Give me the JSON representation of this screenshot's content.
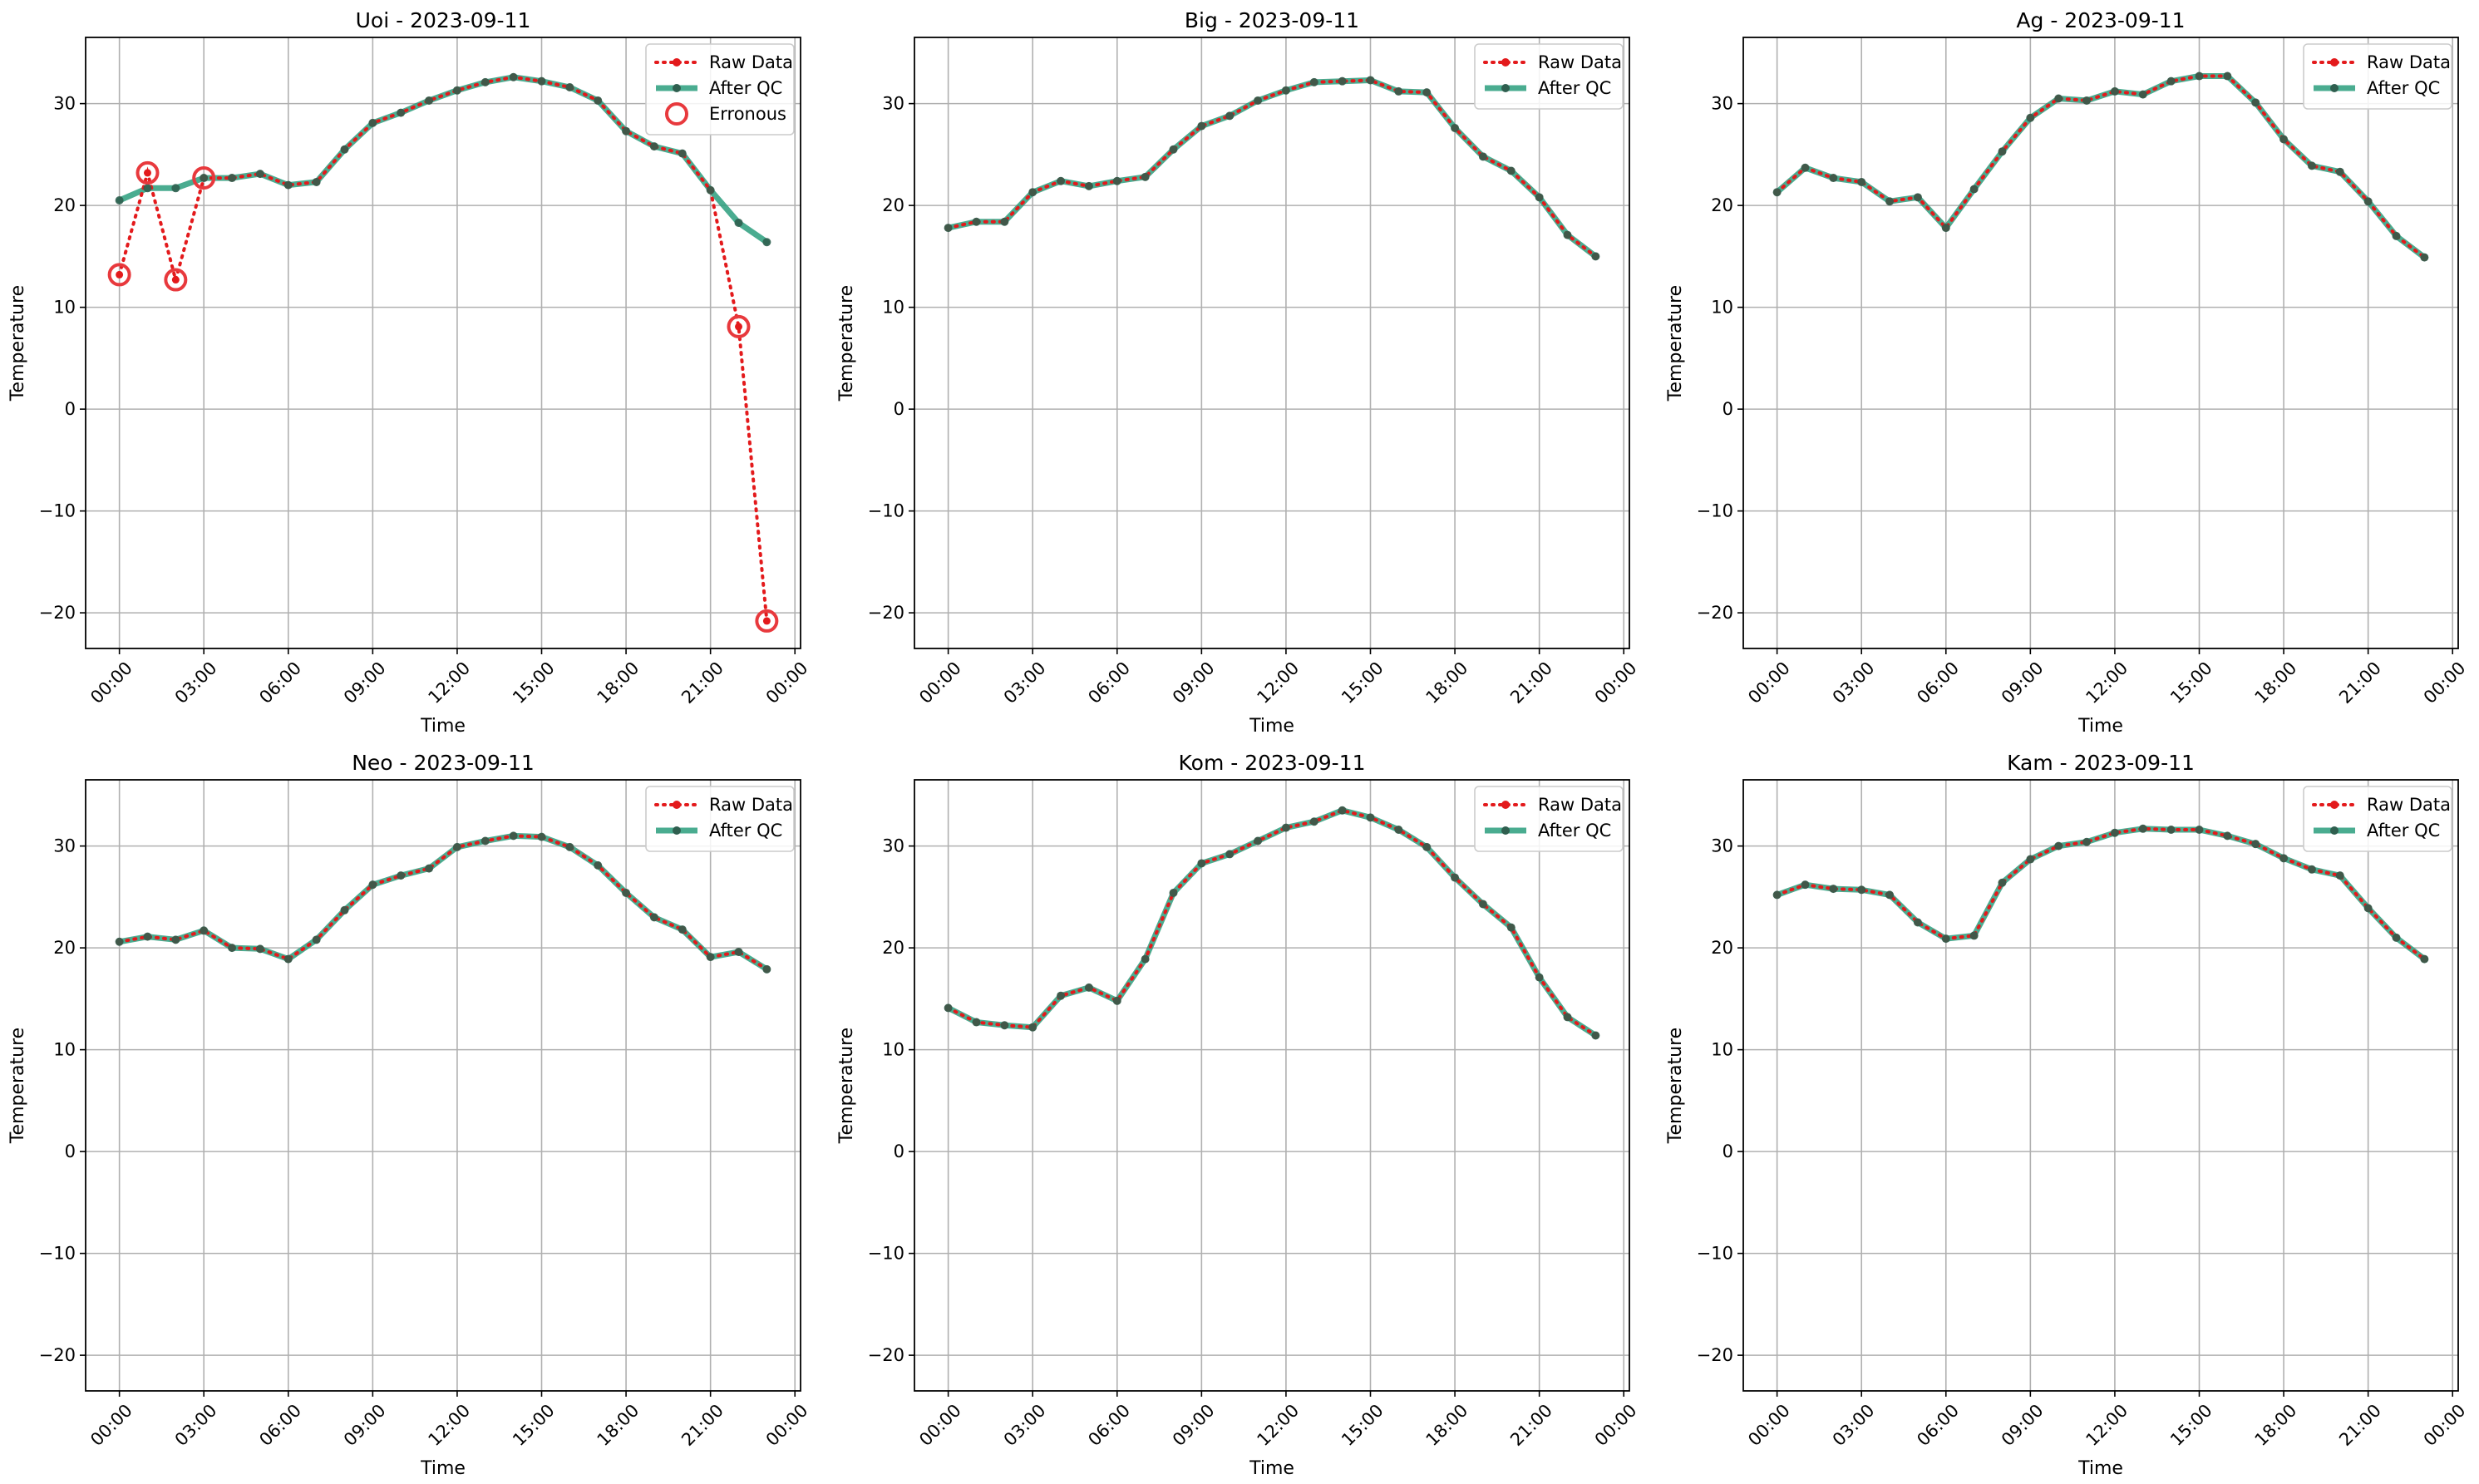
{
  "colors": {
    "raw": "#e31a1c",
    "qc": "#2a9d7c",
    "qc_marker": "#2f5f4f",
    "erroneous": "#e8393d",
    "grid": "#b0b0b0"
  },
  "chart_data": [
    {
      "type": "line",
      "title": "Uoi - 2023-09-11",
      "xlabel": "Time",
      "ylabel": "Temperature",
      "x_ticks": [
        "00:00",
        "03:00",
        "06:00",
        "09:00",
        "12:00",
        "15:00",
        "18:00",
        "21:00",
        "00:00"
      ],
      "y_ticks": [
        "−20",
        "−10",
        "0",
        "10",
        "20",
        "30"
      ],
      "xlim_hours": [
        -1.2,
        24.2
      ],
      "ylim": [
        -23.5,
        36.5
      ],
      "grid": true,
      "legend_position": "top-right",
      "legend": [
        "Raw Data",
        "After QC",
        "Erronous"
      ],
      "raw": [
        13.2,
        23.2,
        12.7,
        22.7,
        22.7,
        23.1,
        22.0,
        22.3,
        25.5,
        28.1,
        29.1,
        30.3,
        31.3,
        32.1,
        32.6,
        32.2,
        31.6,
        30.3,
        27.3,
        25.8,
        25.1,
        21.5,
        8.1,
        -20.8
      ],
      "qc": [
        20.5,
        21.7,
        21.7,
        22.7,
        22.7,
        23.1,
        22.0,
        22.3,
        25.5,
        28.1,
        29.1,
        30.3,
        31.3,
        32.1,
        32.6,
        32.2,
        31.6,
        30.3,
        27.3,
        25.8,
        25.1,
        21.5,
        18.3,
        16.4
      ],
      "erroneous_hours": [
        0,
        1,
        2,
        3,
        22,
        23
      ]
    },
    {
      "type": "line",
      "title": "Big - 2023-09-11",
      "xlabel": "Time",
      "ylabel": "Temperature",
      "x_ticks": [
        "00:00",
        "03:00",
        "06:00",
        "09:00",
        "12:00",
        "15:00",
        "18:00",
        "21:00",
        "00:00"
      ],
      "y_ticks": [
        "−20",
        "−10",
        "0",
        "10",
        "20",
        "30"
      ],
      "xlim_hours": [
        -1.2,
        24.2
      ],
      "ylim": [
        -23.5,
        36.5
      ],
      "grid": true,
      "legend_position": "top-right",
      "legend": [
        "Raw Data",
        "After QC"
      ],
      "raw": [
        17.8,
        18.4,
        18.4,
        21.3,
        22.4,
        21.9,
        22.4,
        22.8,
        25.5,
        27.8,
        28.8,
        30.3,
        31.3,
        32.1,
        32.2,
        32.3,
        31.2,
        31.1,
        27.6,
        24.8,
        23.4,
        20.8,
        17.1,
        15.0
      ],
      "qc": [
        17.8,
        18.4,
        18.4,
        21.3,
        22.4,
        21.9,
        22.4,
        22.8,
        25.5,
        27.8,
        28.8,
        30.3,
        31.3,
        32.1,
        32.2,
        32.3,
        31.2,
        31.1,
        27.6,
        24.8,
        23.4,
        20.8,
        17.1,
        15.0
      ],
      "erroneous_hours": []
    },
    {
      "type": "line",
      "title": "Ag - 2023-09-11",
      "xlabel": "Time",
      "ylabel": "Temperature",
      "x_ticks": [
        "00:00",
        "03:00",
        "06:00",
        "09:00",
        "12:00",
        "15:00",
        "18:00",
        "21:00",
        "00:00"
      ],
      "y_ticks": [
        "−20",
        "−10",
        "0",
        "10",
        "20",
        "30"
      ],
      "xlim_hours": [
        -1.2,
        24.2
      ],
      "ylim": [
        -23.5,
        36.5
      ],
      "grid": true,
      "legend_position": "top-right",
      "legend": [
        "Raw Data",
        "After QC"
      ],
      "raw": [
        21.3,
        23.7,
        22.7,
        22.3,
        20.4,
        20.8,
        17.8,
        21.6,
        25.3,
        28.6,
        30.5,
        30.3,
        31.2,
        30.9,
        32.2,
        32.7,
        32.7,
        30.1,
        26.5,
        23.9,
        23.3,
        20.4,
        17.0,
        14.9
      ],
      "qc": [
        21.3,
        23.7,
        22.7,
        22.3,
        20.4,
        20.8,
        17.8,
        21.6,
        25.3,
        28.6,
        30.5,
        30.3,
        31.2,
        30.9,
        32.2,
        32.7,
        32.7,
        30.1,
        26.5,
        23.9,
        23.3,
        20.4,
        17.0,
        14.9
      ],
      "erroneous_hours": []
    },
    {
      "type": "line",
      "title": "Neo - 2023-09-11",
      "xlabel": "Time",
      "ylabel": "Temperature",
      "x_ticks": [
        "00:00",
        "03:00",
        "06:00",
        "09:00",
        "12:00",
        "15:00",
        "18:00",
        "21:00",
        "00:00"
      ],
      "y_ticks": [
        "−20",
        "−10",
        "0",
        "10",
        "20",
        "30"
      ],
      "xlim_hours": [
        -1.2,
        24.2
      ],
      "ylim": [
        -23.5,
        36.5
      ],
      "grid": true,
      "legend_position": "top-right",
      "legend": [
        "Raw Data",
        "After QC"
      ],
      "raw": [
        20.6,
        21.1,
        20.8,
        21.7,
        20.0,
        19.9,
        18.9,
        20.8,
        23.7,
        26.2,
        27.1,
        27.8,
        29.9,
        30.5,
        31.0,
        30.9,
        29.9,
        28.1,
        25.4,
        23.0,
        21.8,
        19.1,
        19.6,
        17.9
      ],
      "qc": [
        20.6,
        21.1,
        20.8,
        21.7,
        20.0,
        19.9,
        18.9,
        20.8,
        23.7,
        26.2,
        27.1,
        27.8,
        29.9,
        30.5,
        31.0,
        30.9,
        29.9,
        28.1,
        25.4,
        23.0,
        21.8,
        19.1,
        19.6,
        17.9
      ],
      "erroneous_hours": []
    },
    {
      "type": "line",
      "title": "Kom - 2023-09-11",
      "xlabel": "Time",
      "ylabel": "Temperature",
      "x_ticks": [
        "00:00",
        "03:00",
        "06:00",
        "09:00",
        "12:00",
        "15:00",
        "18:00",
        "21:00",
        "00:00"
      ],
      "y_ticks": [
        "−20",
        "−10",
        "0",
        "10",
        "20",
        "30"
      ],
      "xlim_hours": [
        -1.2,
        24.2
      ],
      "ylim": [
        -23.5,
        36.5
      ],
      "grid": true,
      "legend_position": "top-right",
      "legend": [
        "Raw Data",
        "After QC"
      ],
      "raw": [
        14.1,
        12.7,
        12.4,
        12.2,
        15.3,
        16.1,
        14.8,
        18.9,
        25.4,
        28.3,
        29.2,
        30.5,
        31.8,
        32.4,
        33.5,
        32.8,
        31.6,
        29.9,
        26.9,
        24.3,
        22.0,
        17.1,
        13.2,
        11.4
      ],
      "qc": [
        14.1,
        12.7,
        12.4,
        12.2,
        15.3,
        16.1,
        14.8,
        18.9,
        25.4,
        28.3,
        29.2,
        30.5,
        31.8,
        32.4,
        33.5,
        32.8,
        31.6,
        29.9,
        26.9,
        24.3,
        22.0,
        17.1,
        13.2,
        11.4
      ],
      "erroneous_hours": []
    },
    {
      "type": "line",
      "title": "Kam - 2023-09-11",
      "xlabel": "Time",
      "ylabel": "Temperature",
      "x_ticks": [
        "00:00",
        "03:00",
        "06:00",
        "09:00",
        "12:00",
        "15:00",
        "18:00",
        "21:00",
        "00:00"
      ],
      "y_ticks": [
        "−20",
        "−10",
        "0",
        "10",
        "20",
        "30"
      ],
      "xlim_hours": [
        -1.2,
        24.2
      ],
      "ylim": [
        -23.5,
        36.5
      ],
      "grid": true,
      "legend_position": "top-right",
      "legend": [
        "Raw Data",
        "After QC"
      ],
      "raw": [
        25.2,
        26.2,
        25.8,
        25.7,
        25.2,
        22.5,
        20.9,
        21.2,
        26.4,
        28.7,
        30.0,
        30.4,
        31.3,
        31.7,
        31.6,
        31.6,
        31.0,
        30.2,
        28.8,
        27.7,
        27.1,
        23.9,
        21.0,
        18.9
      ],
      "qc": [
        25.2,
        26.2,
        25.8,
        25.7,
        25.2,
        22.5,
        20.9,
        21.2,
        26.4,
        28.7,
        30.0,
        30.4,
        31.3,
        31.7,
        31.6,
        31.6,
        31.0,
        30.2,
        28.8,
        27.7,
        27.1,
        23.9,
        21.0,
        18.9
      ],
      "erroneous_hours": []
    }
  ]
}
